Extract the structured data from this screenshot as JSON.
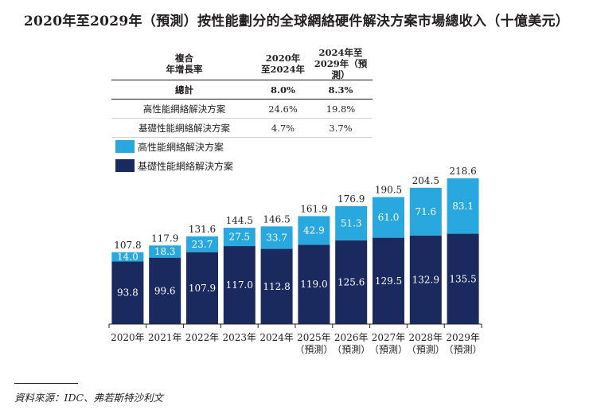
{
  "title": "2020年至2029年（預測）按性能劃分的全球網絡硬件解決方案市場總收入（十億美元）",
  "cagr_table": {
    "headers": [
      "複合\n年增長率",
      "2020年\n至2024年",
      "2024年至\n2029年（預測）"
    ],
    "rows": [
      {
        "label": "總計",
        "v1": "8.0%",
        "v2": "8.3%"
      },
      {
        "label": "高性能網絡解決方案",
        "v1": "24.6%",
        "v2": "19.8%"
      },
      {
        "label": "基礎性能網絡解決方案",
        "v1": "4.7%",
        "v2": "3.7%"
      }
    ]
  },
  "colors": {
    "high": "#29a8e0",
    "basic": "#1b2a5e"
  },
  "source": "資料來源：IDC、弗若斯特沙利文",
  "chart_data": {
    "type": "bar",
    "stacked": true,
    "categories": [
      "2020年",
      "2021年",
      "2022年",
      "2023年",
      "2024年",
      "2025年\n（預測）",
      "2026年\n（預測）",
      "2027年\n（預測）",
      "2028年\n（預測）",
      "2029年\n（預測）"
    ],
    "series": [
      {
        "name": "基礎性能網絡解決方案",
        "values": [
          93.8,
          99.6,
          107.9,
          117.0,
          112.8,
          119.0,
          125.6,
          129.5,
          132.9,
          135.5
        ]
      },
      {
        "name": "高性能網絡解決方案",
        "values": [
          14.0,
          18.3,
          23.7,
          27.5,
          33.7,
          42.9,
          51.3,
          61.0,
          71.6,
          83.1
        ]
      }
    ],
    "totals": [
      107.8,
      117.9,
      131.6,
      144.5,
      146.5,
      161.9,
      176.9,
      190.5,
      204.5,
      218.6
    ],
    "ylim": [
      0,
      218.6
    ]
  }
}
